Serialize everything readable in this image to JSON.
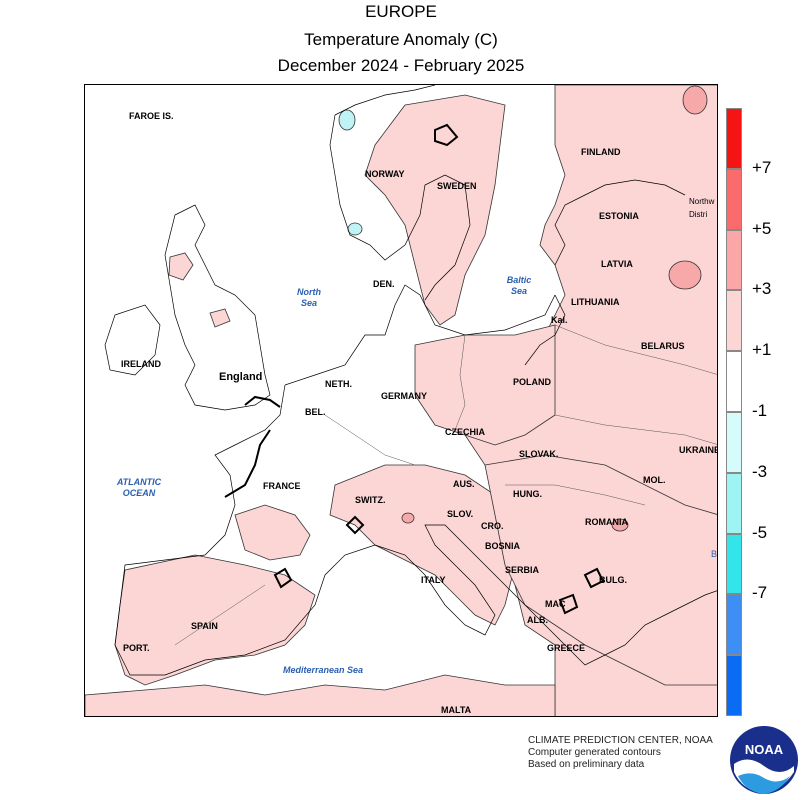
{
  "title": {
    "line1": "EUROPE",
    "line2": "Temperature Anomaly (C)",
    "line3": "December 2024 - February 2025"
  },
  "map_labels": {
    "faroe": "FAROE IS.",
    "norway": "NORWAY",
    "sweden": "SWEDEN",
    "finland": "FINLAND",
    "estonia": "ESTONIA",
    "northwest_district": "Northw Distri",
    "latvia": "LATVIA",
    "lithuania": "LITHUANIA",
    "belarus": "BELARUS",
    "kal": "Kal.",
    "denmark": "DEN.",
    "ireland": "IRELAND",
    "england": "England",
    "neth": "NETH.",
    "germany": "GERMANY",
    "poland": "POLAND",
    "bel": "BEL.",
    "czechia": "CZECHIA",
    "ukraine": "UKRAINE",
    "slovak": "SLOVAK.",
    "france": "FRANCE",
    "aus": "AUS.",
    "hung": "HUNG.",
    "mol": "MOL.",
    "switz": "SWITZ.",
    "slov": "SLOV.",
    "cro": "CRO.",
    "romania": "ROMANIA",
    "bosnia": "BOSNIA",
    "serbia": "SERBIA",
    "bulg": "BULG.",
    "italy": "ITALY",
    "mac": "MAC",
    "spain": "SPAIN",
    "port": "PORT.",
    "alb": "ALB.",
    "greece": "GREECE",
    "malta": "MALTA",
    "b_edge": "B"
  },
  "sea_labels": {
    "north_sea": "North Sea",
    "baltic_sea": "Baltic Sea",
    "atlantic": "ATLANTIC OCEAN",
    "mediterranean": "Mediterranean Sea"
  },
  "colorbar": {
    "colors": [
      "#0a6cf2",
      "#3d8ff5",
      "#33e4ea",
      "#9ef3f3",
      "#d6fbfb",
      "#ffffff",
      "#fcd5d5",
      "#fca7a7",
      "#fb6b6b",
      "#f41414"
    ],
    "labels": [
      "+7",
      "+5",
      "+3",
      "+1",
      "-1",
      "-3",
      "-5",
      "-7"
    ]
  },
  "colors": {
    "anomaly_fill": "#fcd5d5",
    "anomaly_fill_strong": "#f7a9a9",
    "cool_fill": "#bff3f5",
    "coast": "#000000"
  },
  "credit": {
    "line1": "CLIMATE PREDICTION CENTER, NOAA",
    "line2": "Computer generated contours",
    "line3": "Based on preliminary data"
  },
  "logo": {
    "text": "NOAA"
  }
}
